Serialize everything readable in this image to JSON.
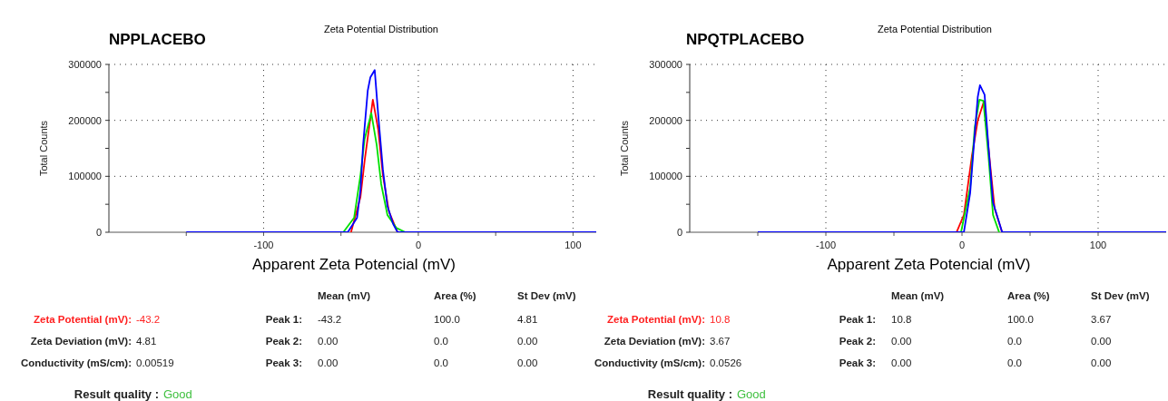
{
  "chart_data": [
    {
      "type": "line",
      "title": "Zeta Potential Distribution",
      "subtitle": "NPPLACEBO",
      "xlabel": "Apparent Zeta Potencial (mV)",
      "ylabel": "Total Counts",
      "xlim": [
        -200,
        115
      ],
      "xticks": [
        {
          "value": -150,
          "label": null
        },
        -100,
        {
          "value": -50,
          "label": null
        },
        0,
        {
          "value": 50,
          "label": null
        },
        100
      ],
      "ylim": [
        0,
        300000
      ],
      "yticks": [
        0,
        {
          "value": 50000,
          "label": null
        },
        100000,
        {
          "value": 150000,
          "label": null
        },
        200000,
        {
          "value": 250000,
          "label": null
        },
        300000
      ],
      "grid": true,
      "marker": "none",
      "line_style": "solid",
      "series": [
        {
          "color": "#ff0000",
          "x": [
            -43.5,
            -37.4,
            -34.7,
            -29.4,
            -25.9,
            -22.9,
            -19,
            -13.4
          ],
          "values": [
            0,
            63000,
            128000,
            237000,
            183000,
            102000,
            37000,
            0
          ]
        },
        {
          "color": "#00e000",
          "x": [
            -48.5,
            -41.5,
            -37.4,
            -34.7,
            -30.4,
            -26.9,
            -24,
            -20,
            -14.3,
            -8.4
          ],
          "values": [
            0,
            26000,
            102000,
            167000,
            213000,
            156000,
            86000,
            31000,
            8000,
            0
          ]
        },
        {
          "color": "#0000ff",
          "x": [
            -150,
            -45.6,
            -39.6,
            -37.4,
            -35.7,
            -32.7,
            -31,
            -28.2,
            -25.9,
            -22.9,
            -20,
            -16.3,
            -13.4,
            115
          ],
          "values": [
            0,
            0,
            26000,
            75000,
            156000,
            253000,
            277000,
            290000,
            209000,
            112000,
            47000,
            15000,
            0,
            0
          ]
        }
      ],
      "annotations": [
        "Mean (mV)",
        "Area (%)",
        "St Dev (mV)",
        "Zeta Potential (mV):",
        "-43.2",
        "Peak 1:",
        "-43.2",
        "100.0",
        "4.81",
        "Zeta Deviation (mV):",
        "4.81",
        "Peak 2:",
        "0.00",
        "0.0",
        "0.00",
        "Conductivity (mS/cm):",
        "0.00519",
        "Peak 3:",
        "0.00",
        "0.0",
        "0.00",
        "Result quality :",
        "Good"
      ]
    },
    {
      "type": "line",
      "title": "Zeta Potential Distribution",
      "subtitle": "NPQTPLACEBO",
      "xlabel": "Apparent Zeta Potencial (mV)",
      "ylabel": "Total Counts",
      "xlim": [
        -200,
        150
      ],
      "xticks": [
        {
          "value": -150,
          "label": null
        },
        -100,
        {
          "value": -50,
          "label": null
        },
        0,
        {
          "value": 50,
          "label": null
        },
        100
      ],
      "ylim": [
        0,
        300000
      ],
      "yticks": [
        0,
        {
          "value": 50000,
          "label": null
        },
        100000,
        {
          "value": 150000,
          "label": null
        },
        200000,
        {
          "value": 250000,
          "label": null
        },
        300000
      ],
      "grid": true,
      "marker": "none",
      "line_style": "solid",
      "series": [
        {
          "color": "#ff0000",
          "x": [
            -4,
            1.4,
            7.2,
            11.6,
            16.1,
            20.6,
            24,
            29.5
          ],
          "values": [
            0,
            31000,
            135000,
            200000,
            234000,
            123000,
            42000,
            0
          ]
        },
        {
          "color": "#00e000",
          "x": [
            -0.7,
            6,
            9.4,
            12.8,
            15.7,
            19.5,
            22.8,
            27.3
          ],
          "values": [
            0,
            80000,
            188000,
            237000,
            235000,
            135000,
            31000,
            0
          ]
        },
        {
          "color": "#0000ff",
          "x": [
            -150,
            1.4,
            6,
            9.4,
            11.6,
            13.2,
            16.6,
            19.5,
            22.8,
            29.5,
            150
          ],
          "values": [
            0,
            0,
            70000,
            177000,
            242000,
            263000,
            246000,
            151000,
            53000,
            0,
            0
          ]
        }
      ],
      "annotations": [
        "Mean (mV)",
        "Area (%)",
        "St Dev (mV)",
        "Zeta Potential (mV):",
        "10.8",
        "Peak 1:",
        "10.8",
        "100.0",
        "3.67",
        "Zeta Deviation (mV):",
        "3.67",
        "Peak 2:",
        "0.00",
        "0.0",
        "0.00",
        "Conductivity (mS/cm):",
        "0.0526",
        "Peak 3:",
        "0.00",
        "0.0",
        "0.00",
        "Result quality :",
        "Good"
      ]
    }
  ]
}
